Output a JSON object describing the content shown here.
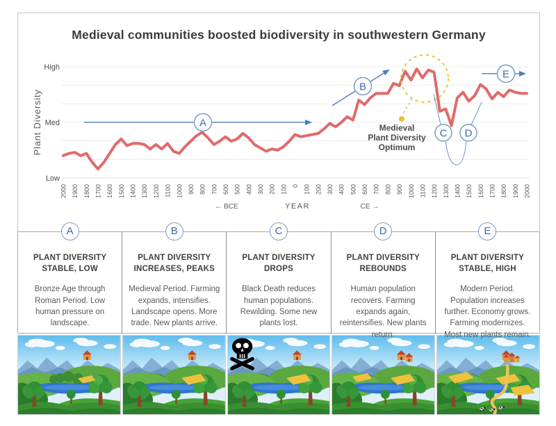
{
  "title": "Medieval communities boosted biodiversity in southwestern Germany",
  "chart": {
    "y_axis_label": "Plant Diversity",
    "y_ticks": [
      "High",
      "Med",
      "Low"
    ],
    "bce_label": "← BCE",
    "year_label": "YEAR",
    "ce_label": "CE →",
    "optimum_lines": [
      "Medieval",
      "Plant Diversity",
      "Optimum"
    ]
  },
  "chart_data": {
    "type": "line",
    "title": "Medieval communities boosted biodiversity in southwestern Germany",
    "xlabel": "YEAR",
    "ylabel": "Plant Diversity",
    "x_axis_note": "years from 2000 BCE (-2000) to 2000 CE (+2000), tick labels every 100 years; '← BCE' left of 0, 'CE →' right of 0",
    "y_categories": [
      "Low",
      "Med",
      "High"
    ],
    "y_scale": "relative diversity: 0 = Low, 0.5 = Med, 1 = High",
    "ylim": [
      0,
      1
    ],
    "grid": "horizontal light-gray gridlines, no vertical grid",
    "legend": "none (single red series)",
    "x": [
      -2000,
      -1950,
      -1900,
      -1850,
      -1800,
      -1750,
      -1700,
      -1650,
      -1600,
      -1550,
      -1500,
      -1450,
      -1400,
      -1350,
      -1300,
      -1250,
      -1200,
      -1150,
      -1100,
      -1050,
      -1000,
      -950,
      -900,
      -850,
      -800,
      -750,
      -700,
      -650,
      -600,
      -550,
      -500,
      -450,
      -400,
      -350,
      -300,
      -250,
      -200,
      -150,
      -100,
      -50,
      0,
      50,
      100,
      150,
      200,
      250,
      300,
      350,
      400,
      450,
      500,
      550,
      600,
      650,
      700,
      750,
      800,
      850,
      900,
      950,
      1000,
      1050,
      1100,
      1150,
      1200,
      1250,
      1300,
      1350,
      1400,
      1450,
      1500,
      1550,
      1600,
      1650,
      1700,
      1750,
      1800,
      1850,
      1900,
      1950,
      2000
    ],
    "series": [
      {
        "name": "Plant diversity (relative)",
        "color": "#e06a6a",
        "values": [
          0.2,
          0.22,
          0.23,
          0.2,
          0.22,
          0.14,
          0.08,
          0.14,
          0.22,
          0.3,
          0.35,
          0.29,
          0.31,
          0.31,
          0.3,
          0.26,
          0.3,
          0.26,
          0.31,
          0.24,
          0.22,
          0.28,
          0.33,
          0.38,
          0.41,
          0.36,
          0.3,
          0.33,
          0.37,
          0.33,
          0.35,
          0.4,
          0.36,
          0.3,
          0.27,
          0.24,
          0.26,
          0.25,
          0.28,
          0.33,
          0.39,
          0.37,
          0.38,
          0.39,
          0.4,
          0.44,
          0.49,
          0.46,
          0.5,
          0.55,
          0.52,
          0.7,
          0.66,
          0.72,
          0.76,
          0.76,
          0.76,
          0.85,
          0.83,
          0.96,
          0.88,
          0.98,
          0.9,
          0.97,
          0.95,
          0.6,
          0.62,
          0.47,
          0.72,
          0.77,
          0.69,
          0.74,
          0.84,
          0.8,
          0.71,
          0.77,
          0.73,
          0.79,
          0.77,
          0.76,
          0.76
        ]
      }
    ],
    "x_tick_labels": [
      "2000",
      "1900",
      "1800",
      "1700",
      "1600",
      "1500",
      "1400",
      "1300",
      "1200",
      "1100",
      "1000",
      "900",
      "800",
      "700",
      "600",
      "500",
      "400",
      "300",
      "200",
      "100",
      "0",
      "100",
      "200",
      "300",
      "400",
      "500",
      "600",
      "700",
      "800",
      "900",
      "1000",
      "1100",
      "1200",
      "1300",
      "1400",
      "1500",
      "1600",
      "1700",
      "1800",
      "1900",
      "2000"
    ],
    "annotations": [
      {
        "label": "A",
        "type": "horizontal arrow at Med level",
        "x_range": [
          -1820,
          170
        ]
      },
      {
        "label": "B",
        "type": "rising diagonal arrow",
        "x_range": [
          320,
          840
        ]
      },
      {
        "label": "C",
        "type": "circled callout pointing at post-peak drop",
        "x": 1300
      },
      {
        "label": "D",
        "type": "circled callout pointing at rebound",
        "x": 1450
      },
      {
        "label": "E",
        "type": "horizontal arrow upper right",
        "x_range": [
          1610,
          2000
        ]
      },
      {
        "label": "Medieval Plant Diversity Optimum",
        "type": "yellow dashed circle around peak with dotted leader and dot",
        "x_range": [
          900,
          1250
        ]
      }
    ]
  },
  "panels": [
    {
      "letter": "A",
      "heading": "PLANT DIVERSITY STABLE, LOW",
      "body": "Bronze Age through Roman Period. Low human pressure on landscape."
    },
    {
      "letter": "B",
      "heading": "PLANT DIVERSITY INCREASES, PEAKS",
      "body": "Medieval Period. Farming expands, intensifies. Landscape opens. More trade. New plants arrive."
    },
    {
      "letter": "C",
      "heading": "PLANT DIVERSITY DROPS",
      "body": "Black Death reduces human populations. Rewilding. Some new plants lost.",
      "icon": "skull-crossbones"
    },
    {
      "letter": "D",
      "heading": "PLANT DIVERSITY REBOUNDS",
      "body": "Human population recovers. Farming expands again, reintensifies. New plants return."
    },
    {
      "letter": "E",
      "heading": "PLANT DIVERSITY STABLE, HIGH",
      "body": "Modern Period. Population increases further. Economy grows. Farming modernizes. Most new plants remain."
    }
  ],
  "colors": {
    "curve": "#e06a6a",
    "annotation_blue": "#4a7cc2",
    "optimum_yellow": "#e3c43a"
  }
}
